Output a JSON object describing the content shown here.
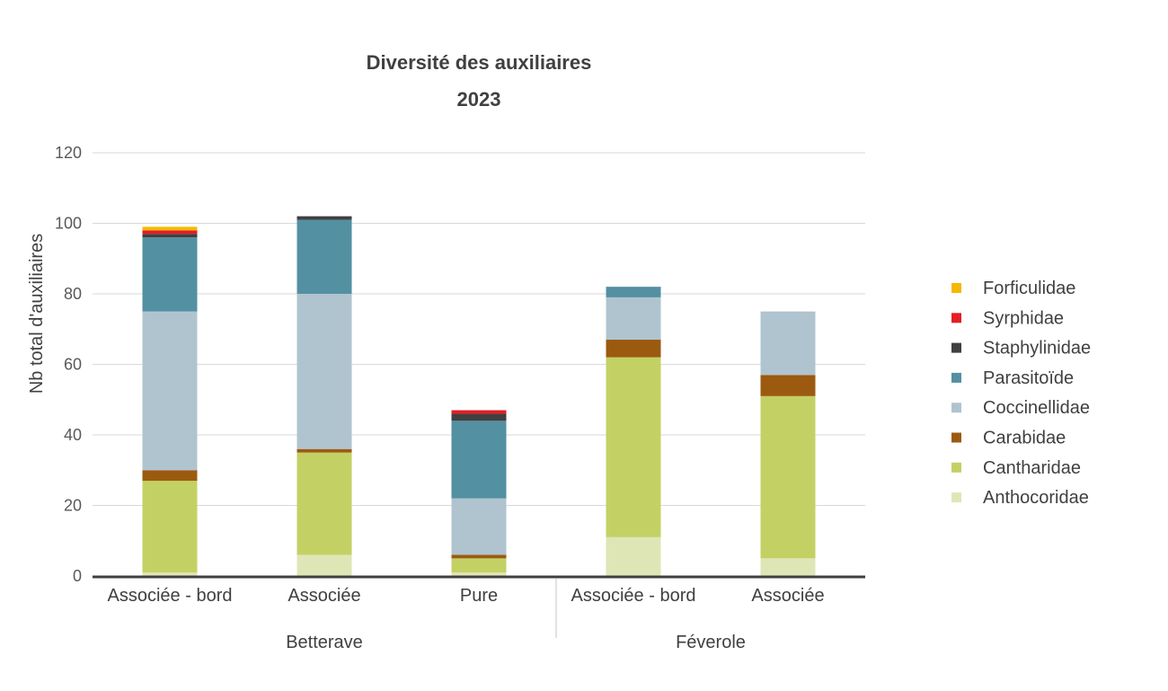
{
  "chart_data": {
    "type": "bar",
    "stacked": true,
    "title": "Diversité des auxiliaires",
    "subtitle": "2023",
    "ylabel": "Nb total d'auxiliaires",
    "ylim": [
      0,
      120
    ],
    "yticks": [
      0,
      20,
      40,
      60,
      80,
      100,
      120
    ],
    "grid": true,
    "legend_position": "right",
    "groups": [
      {
        "label": "Betterave",
        "categories": [
          "Associée - bord",
          "Associée",
          "Pure"
        ]
      },
      {
        "label": "Féverole",
        "categories": [
          "Associée - bord",
          "Associée"
        ]
      }
    ],
    "categories": [
      "Associée - bord",
      "Associée",
      "Pure",
      "Associée - bord",
      "Associée"
    ],
    "series": [
      {
        "name": "Anthocoridae",
        "color": "#dfe6b6",
        "values": [
          1,
          6,
          1,
          11,
          5
        ]
      },
      {
        "name": "Cantharidae",
        "color": "#c3d164",
        "values": [
          26,
          29,
          4,
          51,
          46
        ]
      },
      {
        "name": "Carabidae",
        "color": "#9c5a10",
        "values": [
          3,
          1,
          1,
          5,
          6
        ]
      },
      {
        "name": "Coccinellidae",
        "color": "#b0c4cf",
        "values": [
          45,
          44,
          16,
          12,
          18
        ]
      },
      {
        "name": "Parasitoïde",
        "color": "#5390a2",
        "values": [
          21,
          21,
          22,
          3,
          0
        ]
      },
      {
        "name": "Staphylinidae",
        "color": "#404040",
        "values": [
          1,
          1,
          2,
          0,
          0
        ]
      },
      {
        "name": "Syrphidae",
        "color": "#e31e24",
        "values": [
          1,
          0,
          1,
          0,
          0
        ]
      },
      {
        "name": "Forficulidae",
        "color": "#f5b800",
        "values": [
          1,
          0,
          0,
          0,
          0
        ]
      }
    ]
  }
}
